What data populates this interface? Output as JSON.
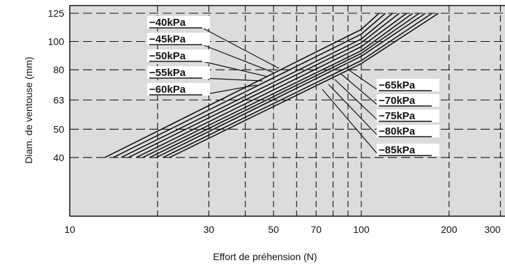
{
  "chart_data": {
    "type": "line",
    "title": "",
    "xlabel": "Effort de préhension (N)",
    "ylabel": "Diam. de ventouse (mm)",
    "x_scale": "log",
    "y_scale": "log",
    "xlim": [
      10,
      300
    ],
    "ylim": [
      22,
      125
    ],
    "grid": true,
    "x_ticks": [
      10,
      30,
      50,
      70,
      100,
      200,
      300
    ],
    "x_tick_labels": [
      "10",
      "30",
      "50",
      "70",
      "100",
      "200",
      "300"
    ],
    "y_ticks": [
      40,
      50,
      63,
      80,
      100,
      125
    ],
    "y_tick_labels": [
      "40",
      "50",
      "63",
      "80",
      "100",
      "125"
    ],
    "series": [
      {
        "name": "−40kPa",
        "x": [
          13.2,
          100.0,
          115.0
        ],
        "y": [
          40,
          110,
          125
        ]
      },
      {
        "name": "−45kPa",
        "x": [
          14.1,
          100.0,
          121.0
        ],
        "y": [
          40,
          106,
          125
        ]
      },
      {
        "name": "−50kPa",
        "x": [
          15.0,
          100.0,
          128.0
        ],
        "y": [
          40,
          102,
          125
        ]
      },
      {
        "name": "−55kPa",
        "x": [
          15.9,
          100.0,
          135.0
        ],
        "y": [
          40,
          99,
          125
        ]
      },
      {
        "name": "−60kPa",
        "x": [
          16.9,
          100.0,
          143.0
        ],
        "y": [
          40,
          96,
          125
        ]
      },
      {
        "name": "−65kPa",
        "x": [
          17.8,
          100.0,
          150.0
        ],
        "y": [
          40,
          93,
          125
        ]
      },
      {
        "name": "−70kPa",
        "x": [
          18.8,
          100.0,
          158.0
        ],
        "y": [
          40,
          91,
          125
        ]
      },
      {
        "name": "−75kPa",
        "x": [
          19.8,
          100.0,
          166.0
        ],
        "y": [
          40,
          89,
          125
        ]
      },
      {
        "name": "−80kPa",
        "x": [
          20.9,
          100.0,
          175.0
        ],
        "y": [
          40,
          86,
          125
        ]
      },
      {
        "name": "−85kPa",
        "x": [
          22.0,
          100.0,
          184.0
        ],
        "y": [
          40,
          84,
          125
        ]
      }
    ]
  }
}
